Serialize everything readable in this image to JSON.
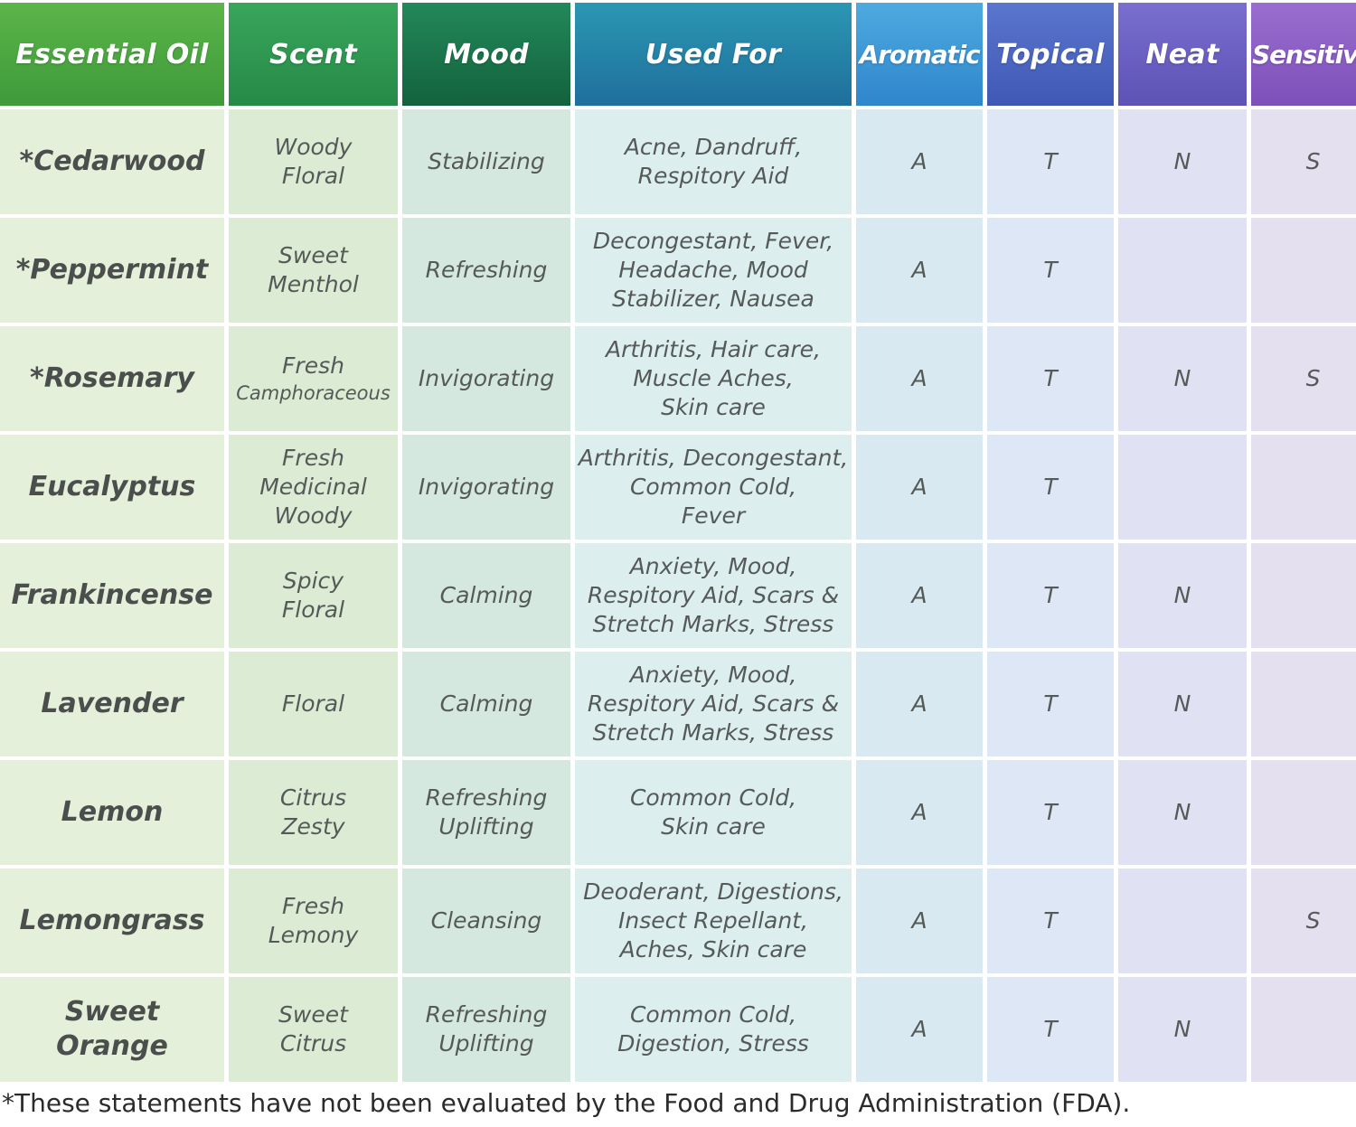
{
  "headers": [
    "Essential Oil",
    "Scent",
    "Mood",
    "Used For",
    "Aromatic",
    "Topical",
    "Neat",
    "Sensitive"
  ],
  "rows": [
    {
      "oil": "*Cedarwood",
      "scent": "Woody\nFloral",
      "mood": "Stabilizing",
      "used_for": "Acne, Dandruff,\nRespitory Aid",
      "aromatic": "A",
      "topical": "T",
      "neat": "N",
      "sensitive": "S"
    },
    {
      "oil": "*Peppermint",
      "scent": "Sweet\nMenthol",
      "mood": "Refreshing",
      "used_for": "Decongestant, Fever,\nHeadache, Mood\nStabilizer, Nausea",
      "aromatic": "A",
      "topical": "T",
      "neat": "",
      "sensitive": ""
    },
    {
      "oil": "*Rosemary",
      "scent": "Fresh",
      "scent_sub": "Camphoraceous",
      "mood": "Invigorating",
      "used_for": "Arthritis, Hair care,\nMuscle Aches,\nSkin care",
      "aromatic": "A",
      "topical": "T",
      "neat": "N",
      "sensitive": "S"
    },
    {
      "oil": "Eucalyptus",
      "scent": "Fresh\nMedicinal\nWoody",
      "mood": "Invigorating",
      "used_for": "Arthritis, Decongestant,\nCommon Cold,\nFever",
      "aromatic": "A",
      "topical": "T",
      "neat": "",
      "sensitive": ""
    },
    {
      "oil": "Frankincense",
      "scent": "Spicy\nFloral",
      "mood": "Calming",
      "used_for": "Anxiety, Mood,\nRespitory Aid, Scars &\nStretch Marks, Stress",
      "aromatic": "A",
      "topical": "T",
      "neat": "N",
      "sensitive": ""
    },
    {
      "oil": "Lavender",
      "scent": "Floral",
      "mood": "Calming",
      "used_for": "Anxiety, Mood,\nRespitory Aid, Scars &\nStretch Marks, Stress",
      "aromatic": "A",
      "topical": "T",
      "neat": "N",
      "sensitive": ""
    },
    {
      "oil": "Lemon",
      "scent": "Citrus\nZesty",
      "mood": "Refreshing\nUplifting",
      "used_for": "Common Cold,\nSkin care",
      "aromatic": "A",
      "topical": "T",
      "neat": "N",
      "sensitive": ""
    },
    {
      "oil": "Lemongrass",
      "scent": "Fresh\nLemony",
      "mood": "Cleansing",
      "used_for": "Deoderant, Digestions,\nInsect Repellant,\nAches, Skin care",
      "aromatic": "A",
      "topical": "T",
      "neat": "",
      "sensitive": "S"
    },
    {
      "oil": "Sweet\nOrange",
      "scent": "Sweet\nCitrus",
      "mood": "Refreshing\nUplifting",
      "used_for": "Common Cold,\nDigestion, Stress",
      "aromatic": "A",
      "topical": "T",
      "neat": "N",
      "sensitive": ""
    }
  ],
  "footnote": "*These statements have not been evaluated by the Food and Drug Administration (FDA)."
}
